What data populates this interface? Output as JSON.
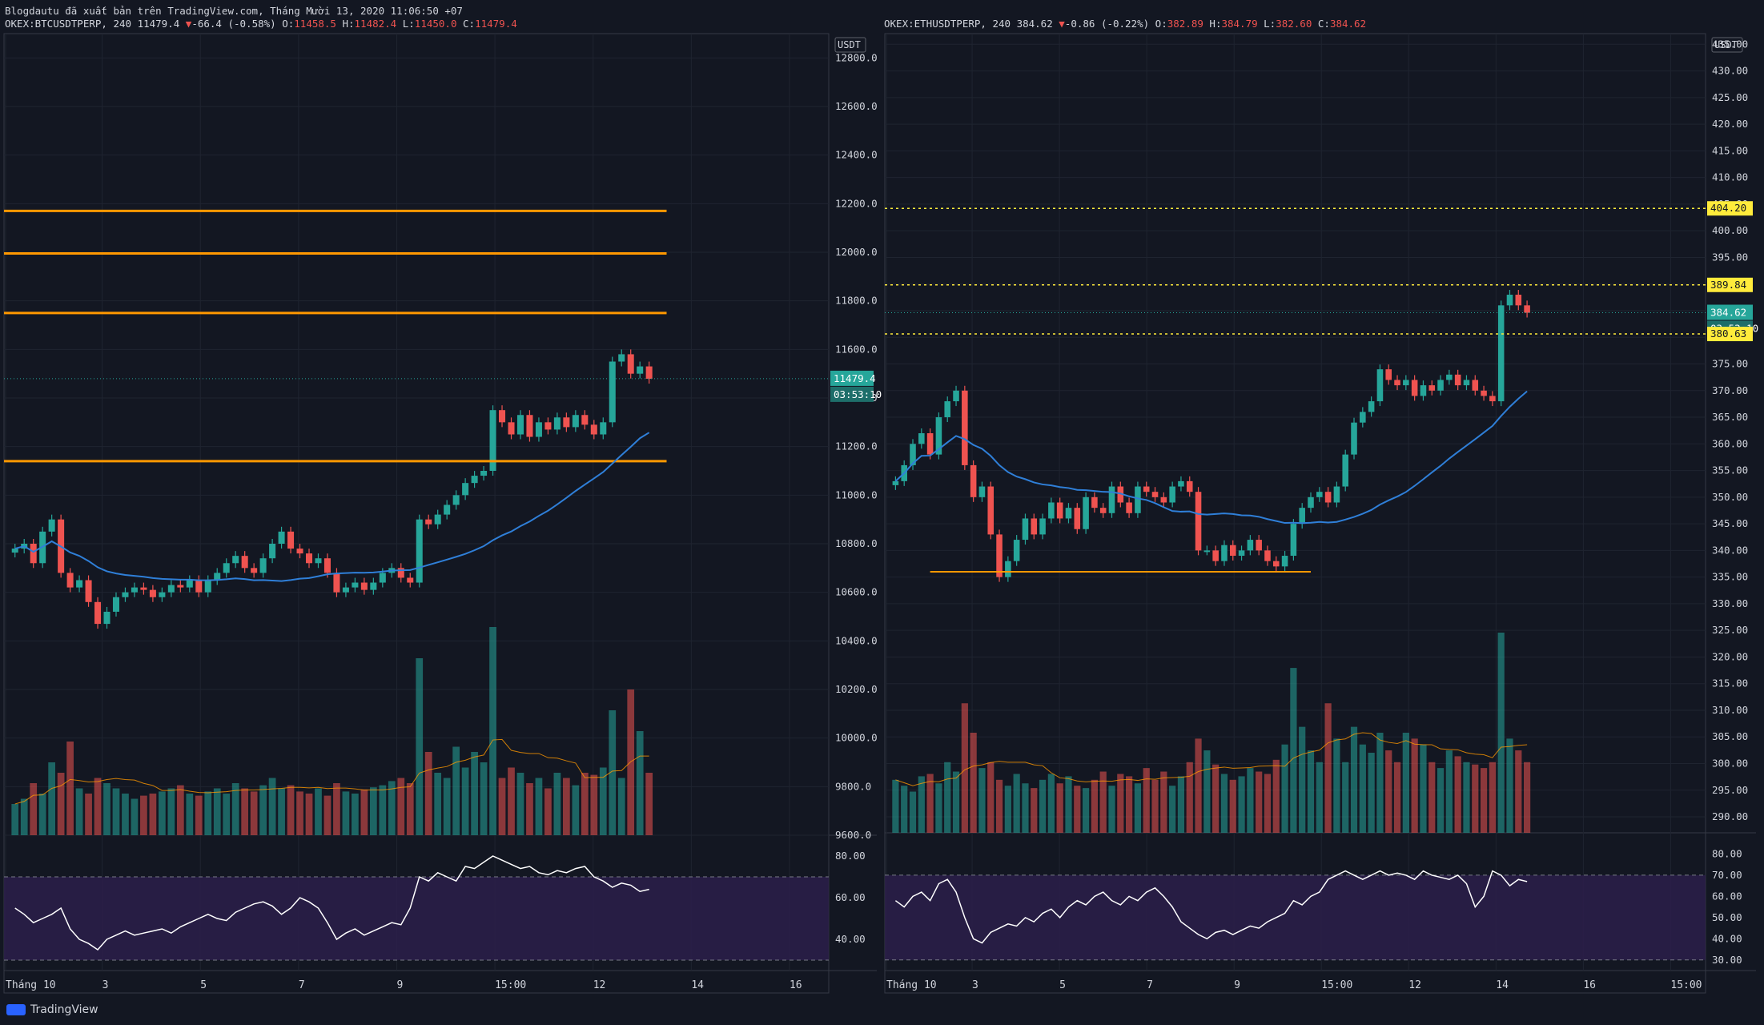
{
  "header": {
    "publish_line": "Blogdautu đã xuất bản trên TradingView.com, Tháng Mười 13, 2020 11:06:50 +07",
    "left": {
      "symbol": "OKEX:BTCUSDTPERP, 240",
      "last": "11479.4",
      "change": "-66.4 (-0.58%)",
      "o": "11458.5",
      "h": "11482.4",
      "l": "11450.0",
      "c": "11479.4"
    },
    "right": {
      "symbol": "OKEX:ETHUSDTPERP, 240",
      "last": "384.62",
      "change": "-0.86 (-0.22%)",
      "o": "382.89",
      "h": "384.79",
      "l": "382.60",
      "c": "384.62"
    }
  },
  "brand": "TradingView",
  "colors": {
    "bg": "#131722",
    "up": "#26a69a",
    "down": "#ef5350",
    "orange": "#ff9800",
    "blue": "#2f7fd8",
    "yellow": "#ffeb3b",
    "rsi_band": "#2b1e4a"
  },
  "chart_data": [
    {
      "type": "candlestick",
      "title": "OKEX:BTCUSDTPERP, 240",
      "currency": "USDT",
      "ylim": [
        9600,
        12900
      ],
      "y_ticks": [
        "12800.0",
        "12600.0",
        "12400.0",
        "12200.0",
        "12000.0",
        "11800.0",
        "11600.0",
        "11400.0",
        "11200.0",
        "11000.0",
        "10800.0",
        "10600.0",
        "10400.0",
        "10200.0",
        "10000.0",
        "9800.0",
        "9600.0"
      ],
      "x_ticks": [
        "Tháng 10",
        "3",
        "5",
        "7",
        "9",
        "15:00",
        "12",
        "14",
        "16"
      ],
      "last_price": "11479.4",
      "countdown": "03:53:10",
      "horizontal_levels": [
        12170,
        11995,
        11750,
        11140
      ],
      "close_series": [
        10780,
        10800,
        10720,
        10850,
        10900,
        10680,
        10620,
        10650,
        10560,
        10470,
        10520,
        10580,
        10600,
        10620,
        10610,
        10580,
        10600,
        10630,
        10620,
        10650,
        10600,
        10650,
        10680,
        10720,
        10750,
        10700,
        10680,
        10740,
        10800,
        10850,
        10780,
        10760,
        10720,
        10740,
        10680,
        10600,
        10620,
        10640,
        10610,
        10640,
        10680,
        10700,
        10660,
        10640,
        10900,
        10880,
        10920,
        10960,
        11000,
        11050,
        11080,
        11100,
        11350,
        11300,
        11250,
        11330,
        11240,
        11300,
        11270,
        11320,
        11280,
        11330,
        11290,
        11250,
        11300,
        11550,
        11580,
        11500,
        11530,
        11479
      ],
      "volume_series": [
        30,
        35,
        50,
        40,
        70,
        60,
        90,
        45,
        40,
        55,
        50,
        45,
        40,
        35,
        38,
        40,
        42,
        45,
        48,
        40,
        38,
        42,
        45,
        40,
        50,
        45,
        42,
        48,
        55,
        45,
        48,
        42,
        40,
        45,
        38,
        50,
        42,
        40,
        44,
        46,
        48,
        52,
        55,
        50,
        170,
        80,
        60,
        55,
        85,
        65,
        80,
        70,
        200,
        55,
        65,
        60,
        50,
        55,
        45,
        60,
        55,
        48,
        60,
        58,
        65,
        120,
        55,
        140,
        100,
        60
      ],
      "rsi_series": [
        55,
        52,
        48,
        50,
        52,
        55,
        45,
        40,
        38,
        35,
        40,
        42,
        44,
        42,
        43,
        44,
        45,
        43,
        46,
        48,
        50,
        52,
        50,
        49,
        53,
        55,
        57,
        58,
        56,
        52,
        55,
        60,
        58,
        55,
        48,
        40,
        43,
        45,
        42,
        44,
        46,
        48,
        47,
        55,
        70,
        68,
        72,
        70,
        68,
        75,
        74,
        77,
        80,
        78,
        76,
        74,
        75,
        72,
        71,
        73,
        72,
        74,
        75,
        70,
        68,
        65,
        67,
        66,
        63,
        64
      ],
      "rsi_ticks": [
        "80.00",
        "60.00",
        "40.00"
      ],
      "rsi_bands": [
        70,
        30
      ]
    },
    {
      "type": "candlestick",
      "title": "OKEX:ETHUSDTPERP, 240",
      "currency": "USDT",
      "ylim": [
        287,
        437
      ],
      "y_ticks": [
        "435.00",
        "430.00",
        "425.00",
        "420.00",
        "415.00",
        "410.00",
        "405.00",
        "400.00",
        "395.00",
        "390.00",
        "385.00",
        "380.00",
        "375.00",
        "370.00",
        "365.00",
        "360.00",
        "355.00",
        "350.00",
        "345.00",
        "340.00",
        "335.00",
        "330.00",
        "325.00",
        "320.00",
        "315.00",
        "310.00",
        "305.00",
        "300.00",
        "295.00",
        "290.00"
      ],
      "x_ticks": [
        "Tháng 10",
        "3",
        "5",
        "7",
        "9",
        "15:00",
        "12",
        "14",
        "16",
        "15:00"
      ],
      "last_price": "384.62",
      "countdown": "03:53:10",
      "level_labels": [
        "404.20",
        "389.84",
        "380.63"
      ],
      "dotted_levels": [
        404.2,
        389.84,
        380.63
      ],
      "support_level": 336,
      "close_series": [
        353,
        356,
        360,
        362,
        358,
        365,
        368,
        370,
        356,
        350,
        352,
        343,
        335,
        338,
        342,
        346,
        343,
        346,
        349,
        346,
        348,
        344,
        350,
        348,
        347,
        352,
        349,
        347,
        352,
        351,
        350,
        349,
        352,
        353,
        351,
        340,
        340,
        338,
        341,
        339,
        340,
        342,
        340,
        338,
        337,
        339,
        345,
        348,
        350,
        351,
        349,
        352,
        358,
        364,
        366,
        368,
        374,
        372,
        371,
        372,
        369,
        371,
        370,
        372,
        373,
        371,
        372,
        370,
        369,
        368,
        386,
        388,
        386,
        384.62
      ],
      "volume_series": [
        45,
        40,
        35,
        48,
        50,
        42,
        60,
        52,
        110,
        85,
        55,
        60,
        45,
        40,
        50,
        42,
        38,
        45,
        50,
        42,
        48,
        40,
        38,
        45,
        52,
        40,
        50,
        48,
        42,
        55,
        45,
        52,
        40,
        48,
        60,
        80,
        70,
        58,
        50,
        45,
        48,
        55,
        52,
        50,
        62,
        75,
        140,
        90,
        70,
        60,
        110,
        80,
        60,
        90,
        75,
        68,
        85,
        70,
        60,
        85,
        80,
        75,
        60,
        55,
        70,
        65,
        60,
        58,
        55,
        60,
        170,
        80,
        70,
        60
      ],
      "rsi_series": [
        58,
        55,
        60,
        62,
        58,
        66,
        68,
        62,
        50,
        40,
        38,
        43,
        45,
        47,
        46,
        50,
        48,
        52,
        54,
        50,
        55,
        58,
        56,
        60,
        62,
        58,
        56,
        60,
        58,
        62,
        64,
        60,
        55,
        48,
        45,
        42,
        40,
        43,
        44,
        42,
        44,
        46,
        45,
        48,
        50,
        52,
        58,
        56,
        60,
        62,
        68,
        70,
        72,
        70,
        68,
        70,
        72,
        70,
        71,
        70,
        68,
        72,
        70,
        69,
        68,
        70,
        66,
        55,
        60,
        72,
        70,
        65,
        68,
        67
      ],
      "rsi_ticks": [
        "80.00",
        "70.00",
        "60.00",
        "50.00",
        "40.00",
        "30.00"
      ],
      "rsi_bands": [
        70,
        30
      ]
    }
  ]
}
